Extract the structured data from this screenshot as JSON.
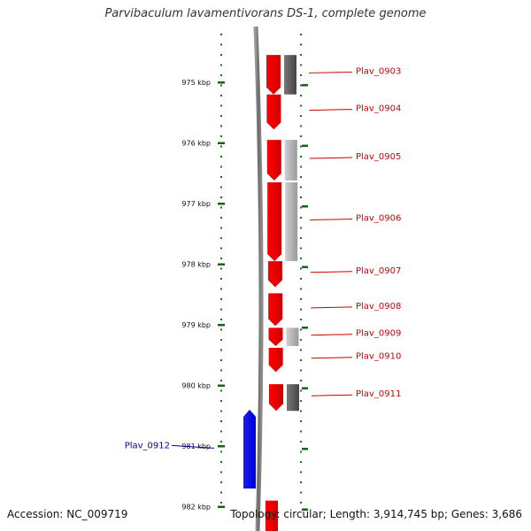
{
  "title": "Parvibaculum lavamentivorans DS-1, complete genome",
  "footer": {
    "accession": "Accession: NC_009719",
    "summary": "Topology: circular; Length: 3,914,745 bp; Genes: 3,686"
  },
  "axis": {
    "unit": "kbp",
    "ticks": [
      {
        "value": 975,
        "label": "975 kbp"
      },
      {
        "value": 976,
        "label": "976 kbp"
      },
      {
        "value": 977,
        "label": "977 kbp"
      },
      {
        "value": 978,
        "label": "978 kbp"
      },
      {
        "value": 979,
        "label": "979 kbp"
      },
      {
        "value": 980,
        "label": "980 kbp"
      },
      {
        "value": 981,
        "label": "981 kbp"
      },
      {
        "value": 982,
        "label": "982 kbp"
      }
    ]
  },
  "genes": [
    {
      "name": "Plav_0903",
      "strand": "+",
      "start": 974.55,
      "end": 975.2,
      "color": "#ff0000",
      "labelColor": "#cc0000",
      "paired": true,
      "pairColor": "#666666"
    },
    {
      "name": "Plav_0904",
      "strand": "+",
      "start": 975.2,
      "end": 975.78,
      "color": "#ff0000",
      "labelColor": "#cc0000",
      "paired": false
    },
    {
      "name": "Plav_0905",
      "strand": "+",
      "start": 975.95,
      "end": 976.62,
      "color": "#ff0000",
      "labelColor": "#cc0000",
      "paired": true,
      "pairColor": "#aaaaaa"
    },
    {
      "name": "Plav_0906",
      "strand": "+",
      "start": 976.65,
      "end": 977.95,
      "color": "#ff0000",
      "labelColor": "#cc0000",
      "paired": true,
      "pairColor": "#aaaaaa"
    },
    {
      "name": "Plav_0907",
      "strand": "+",
      "start": 977.95,
      "end": 978.38,
      "color": "#ff0000",
      "labelColor": "#cc0000",
      "paired": false
    },
    {
      "name": "Plav_0908",
      "strand": "+",
      "start": 978.48,
      "end": 979.02,
      "color": "#ff0000",
      "labelColor": "#cc0000",
      "paired": false
    },
    {
      "name": "Plav_0909",
      "strand": "+",
      "start": 979.05,
      "end": 979.35,
      "color": "#ff0000",
      "labelColor": "#cc0000",
      "paired": true,
      "pairColor": "#aaaaaa"
    },
    {
      "name": "Plav_0910",
      "strand": "+",
      "start": 979.38,
      "end": 979.78,
      "color": "#ff0000",
      "labelColor": "#cc0000",
      "paired": false
    },
    {
      "name": "Plav_0911",
      "strand": "+",
      "start": 979.98,
      "end": 980.42,
      "color": "#ff0000",
      "labelColor": "#cc0000",
      "paired": true,
      "pairColor": "#555555"
    },
    {
      "name": "Plav_0912",
      "strand": "-",
      "start": 980.4,
      "end": 981.7,
      "color": "#0000ff",
      "labelColor": "#000099",
      "paired": false
    }
  ],
  "partialGene": {
    "start": 981.9,
    "color": "#ff0000"
  }
}
